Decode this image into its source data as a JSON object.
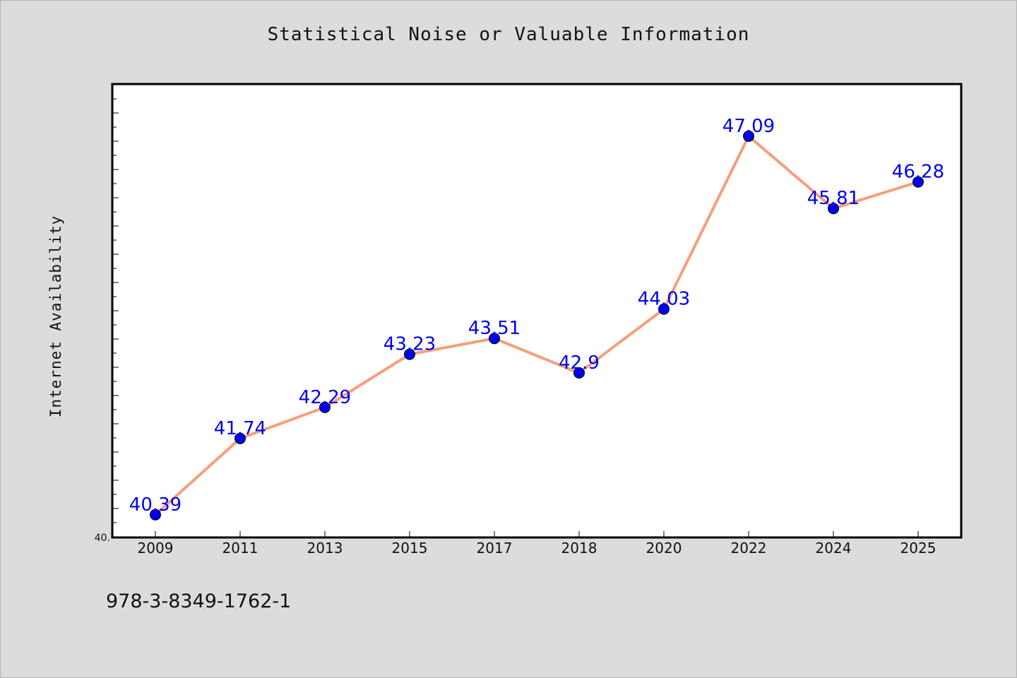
{
  "chart_data": {
    "type": "line",
    "title": "Statistical Noise or Valuable Information",
    "xlabel": "",
    "ylabel": "Internet Availability",
    "categories": [
      "2009",
      "2011",
      "2013",
      "2015",
      "2017",
      "2018",
      "2020",
      "2022",
      "2024",
      "2025"
    ],
    "series": [
      {
        "values": [
          40.39,
          41.74,
          42.29,
          43.23,
          43.51,
          42.9,
          44.03,
          47.09,
          45.81,
          46.28
        ]
      }
    ],
    "data_labels": [
      "40.39",
      "41.74",
      "42.29",
      "43.23",
      "43.51",
      "42.9",
      "44.03",
      "47.09",
      "45.81",
      "46.28"
    ],
    "ylim": [
      40,
      48
    ],
    "y_min_label": "40.",
    "grid": false,
    "line_color": "#f4a07a",
    "marker_color": "#0000ee",
    "label_color": "#0000ee"
  },
  "footer": {
    "isbn": "978-3-8349-1762-1"
  }
}
